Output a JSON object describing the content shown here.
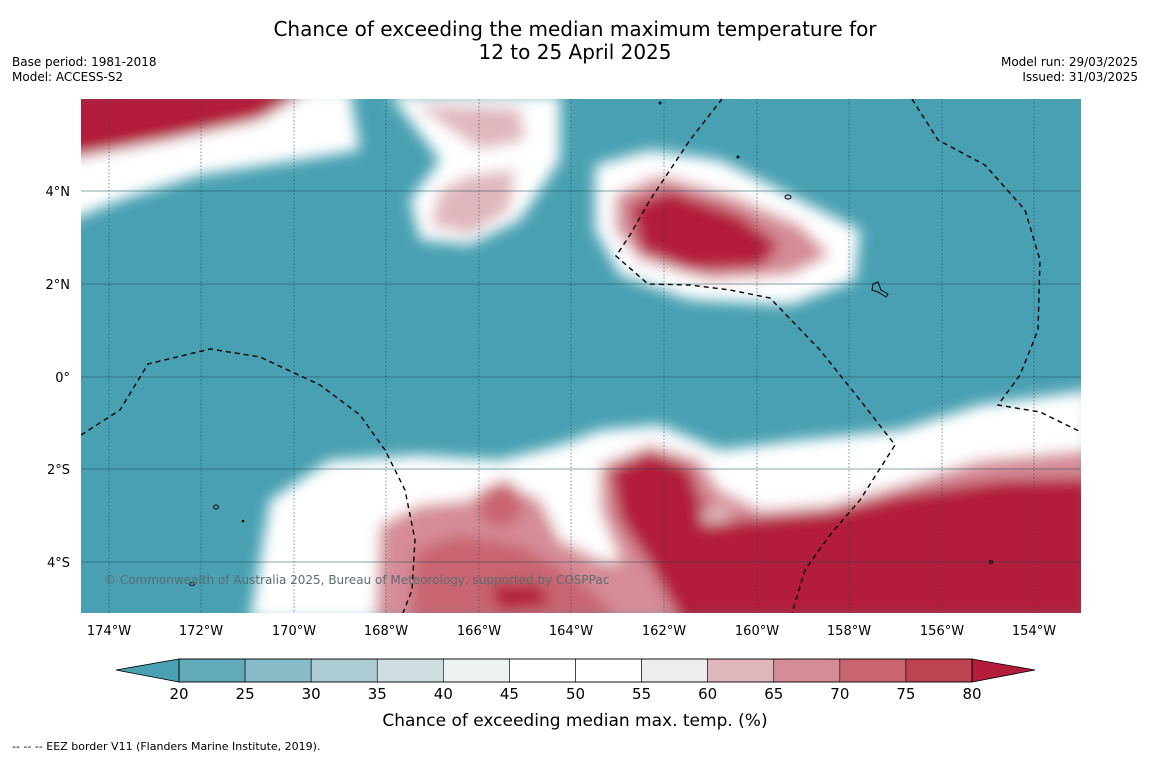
{
  "header": {
    "title_line1": "Chance of exceeding the median maximum temperature for",
    "title_line2": "12 to 25 April 2025",
    "base_period": "Base period: 1981-2018",
    "model": "Model: ACCESS-S2",
    "model_run": "Model run: 29/03/2025",
    "issued": "Issued: 31/03/2025"
  },
  "map": {
    "copyright": "© Commonwealth of Australia 2025, Bureau of Meteorology, supported by COSPPac",
    "lon_labels": [
      "174°W",
      "172°W",
      "170°W",
      "168°W",
      "166°W",
      "164°W",
      "162°W",
      "160°W",
      "158°W",
      "156°W",
      "154°W"
    ],
    "lat_labels": [
      "4°N",
      "2°N",
      "0°",
      "2°S",
      "4°S"
    ],
    "colors": {
      "below_20": "#48A0B2",
      "above_80": "#B31C3A"
    }
  },
  "colorbar": {
    "ticks": [
      "20",
      "25",
      "30",
      "35",
      "40",
      "45",
      "50",
      "55",
      "60",
      "65",
      "70",
      "75",
      "80"
    ],
    "colors": [
      "#62A9B9",
      "#87BCC8",
      "#ABCDD3",
      "#CEDDDF",
      "#EDF2F3",
      "#FFFFFF",
      "#FFFFFF",
      "#EEEDEE",
      "#E0B7BD",
      "#D58C97",
      "#C9656F",
      "#BD4350"
    ],
    "label": "Chance of exceeding median max. temp. (%)"
  },
  "footnote": "--  --  -- EEZ border V11 (Flanders Marine Institute, 2019)."
}
